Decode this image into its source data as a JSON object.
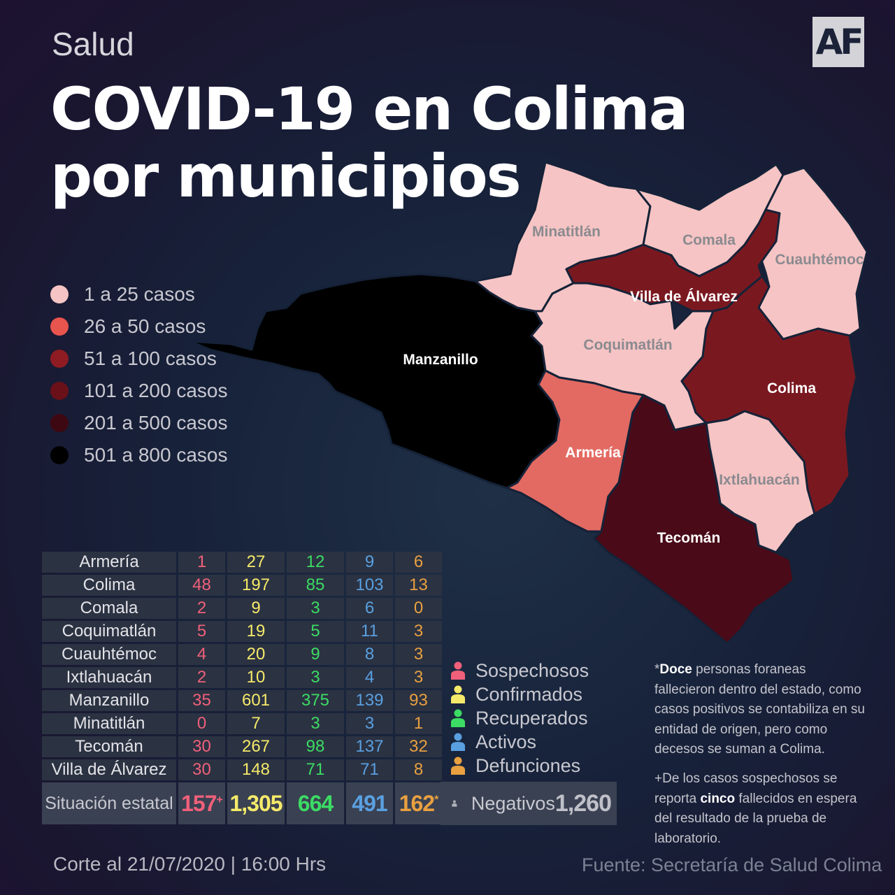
{
  "header": {
    "section": "Salud",
    "logo": "AF",
    "title_line1": "COVID-19 en Colima",
    "title_line2": "por municipios"
  },
  "legend": [
    {
      "label": "1 a 25 casos",
      "color": "#f6c4c4"
    },
    {
      "label": "26 a  50 casos",
      "color": "#e8544e"
    },
    {
      "label": "51 a  100 casos",
      "color": "#8e1c22"
    },
    {
      "label": "101 a  200 casos",
      "color": "#6a1018"
    },
    {
      "label": "201  a  500 casos",
      "color": "#3e0812"
    },
    {
      "label": "501  a  800 casos",
      "color": "#000000"
    }
  ],
  "map": {
    "municipalities": [
      {
        "name": "Manzanillo",
        "fill": "#000000",
        "label_color": "#ffffff"
      },
      {
        "name": "Minatitlán",
        "fill": "#f6c4c4",
        "label_color": "#8a8a90"
      },
      {
        "name": "Comala",
        "fill": "#f6c4c4",
        "label_color": "#8a8a90"
      },
      {
        "name": "Cuauhtémoc",
        "fill": "#f6c4c4",
        "label_color": "#8a8a90"
      },
      {
        "name": "Villa de Álvarez",
        "fill": "#7a1820",
        "label_color": "#ffffff"
      },
      {
        "name": "Coquimatlán",
        "fill": "#f6c4c4",
        "label_color": "#8a8a90"
      },
      {
        "name": "Colima",
        "fill": "#7a1820",
        "label_color": "#ffffff"
      },
      {
        "name": "Armería",
        "fill": "#e36a62",
        "label_color": "#ffffff"
      },
      {
        "name": "Ixtlahuacán",
        "fill": "#f6c4c4",
        "label_color": "#8a8a90"
      },
      {
        "name": "Tecomán",
        "fill": "#4a0a18",
        "label_color": "#ffffff"
      }
    ]
  },
  "category_colors": {
    "sospechosos": "#f0607a",
    "confirmados": "#f5ea6a",
    "recuperados": "#3cdc64",
    "activos": "#5aa0e0",
    "defunciones": "#e8a040",
    "negativos": "#b0b2ba"
  },
  "table": {
    "rows": [
      {
        "municipio": "Armería",
        "sospechosos": "1",
        "confirmados": "27",
        "recuperados": "12",
        "activos": "9",
        "defunciones": "6"
      },
      {
        "municipio": "Colima",
        "sospechosos": "48",
        "confirmados": "197",
        "recuperados": "85",
        "activos": "103",
        "defunciones": "13"
      },
      {
        "municipio": "Comala",
        "sospechosos": "2",
        "confirmados": "9",
        "recuperados": "3",
        "activos": "6",
        "defunciones": "0"
      },
      {
        "municipio": "Coquimatlán",
        "sospechosos": "5",
        "confirmados": "19",
        "recuperados": "5",
        "activos": "11",
        "defunciones": "3"
      },
      {
        "municipio": "Cuauhtémoc",
        "sospechosos": "4",
        "confirmados": "20",
        "recuperados": "9",
        "activos": "8",
        "defunciones": "3"
      },
      {
        "municipio": "Ixtlahuacán",
        "sospechosos": "2",
        "confirmados": "10",
        "recuperados": "3",
        "activos": "4",
        "defunciones": "3"
      },
      {
        "municipio": "Manzanillo",
        "sospechosos": "35",
        "confirmados": "601",
        "recuperados": "375",
        "activos": "139",
        "defunciones": "93"
      },
      {
        "municipio": "Minatitlán",
        "sospechosos": "0",
        "confirmados": "7",
        "recuperados": "3",
        "activos": "3",
        "defunciones": "1"
      },
      {
        "municipio": "Tecomán",
        "sospechosos": "30",
        "confirmados": "267",
        "recuperados": "98",
        "activos": "137",
        "defunciones": "32"
      },
      {
        "municipio": "Villa de Álvarez",
        "sospechosos": "30",
        "confirmados": "148",
        "recuperados": "71",
        "activos": "71",
        "defunciones": "8"
      }
    ],
    "total": {
      "label": "Situación estatal",
      "sospechosos": "157",
      "sospechosos_mark": "+",
      "confirmados": "1,305",
      "recuperados": "664",
      "activos": "491",
      "defunciones": "162",
      "defunciones_mark": "*"
    }
  },
  "categories": {
    "sospechosos": "Sospechosos",
    "confirmados": "Confirmados",
    "recuperados": "Recuperados",
    "activos": "Activos",
    "defunciones": "Defunciones"
  },
  "negativos": {
    "label": "Negativos",
    "value": "1,260"
  },
  "notes": {
    "note1_prefix": "*",
    "note1_bold": "Doce",
    "note1_text": "  personas foraneas fallecieron dentro del estado, como casos positivos se contabiliza en su entidad de origen, pero como decesos se suman a Colima.",
    "note2_prefix": "+De los casos sospechosos se reporta ",
    "note2_bold": "cinco",
    "note2_text": " fallecidos en espera del resultado de la prueba de laboratorio."
  },
  "footer": {
    "cutoff": "Corte al 21/07/2020 | 16:00 Hrs",
    "source": "Fuente: Secretaría de Salud Colima"
  }
}
